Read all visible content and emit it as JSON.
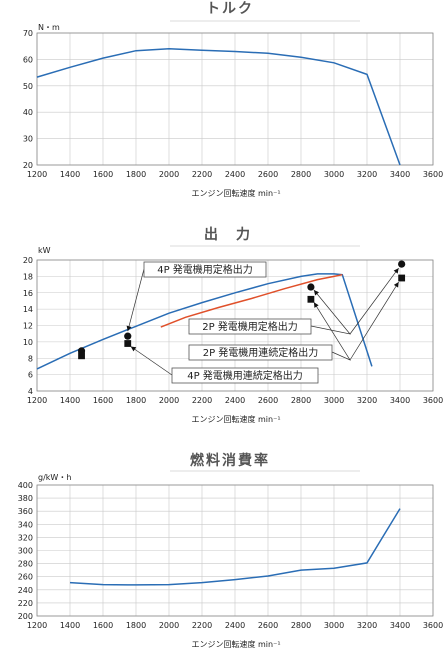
{
  "charts": [
    {
      "title": "トルク",
      "unit_label": "N・m",
      "xlabel": "エンジン回転速度 min⁻¹",
      "xlim": [
        1200,
        3600
      ],
      "ylim": [
        20,
        70
      ],
      "x_ticks": [
        1200,
        1400,
        1600,
        1800,
        2000,
        2200,
        2400,
        2600,
        2800,
        3000,
        3200,
        3400,
        3600
      ],
      "y_ticks": [
        20,
        30,
        40,
        50,
        60,
        70
      ]
    },
    {
      "title": "出　力",
      "unit_label": "kW",
      "xlabel": "エンジン回転速度 min⁻¹",
      "xlim": [
        1200,
        3600
      ],
      "ylim": [
        4,
        20
      ],
      "x_ticks": [
        1200,
        1400,
        1600,
        1800,
        2000,
        2200,
        2400,
        2600,
        2800,
        3000,
        3200,
        3400,
        3600
      ],
      "y_ticks": [
        4,
        6,
        8,
        10,
        12,
        14,
        16,
        18,
        20
      ],
      "callouts": [
        "4P 発電機用定格出力",
        "2P 発電機用定格出力",
        "2P 発電機用連続定格出力",
        "4P 発電機用連続定格出力"
      ]
    },
    {
      "title": "燃料消費率",
      "unit_label": "g/kW・h",
      "xlabel": "エンジン回転速度 min⁻¹",
      "xlim": [
        1200,
        3600
      ],
      "ylim": [
        200,
        400
      ],
      "x_ticks": [
        1200,
        1400,
        1600,
        1800,
        2000,
        2200,
        2400,
        2600,
        2800,
        3000,
        3200,
        3400,
        3600
      ],
      "y_ticks": [
        200,
        220,
        240,
        260,
        280,
        300,
        320,
        340,
        360,
        380,
        400
      ]
    }
  ],
  "chart_data": [
    {
      "type": "line",
      "title": "トルク",
      "ylabel": "N・m",
      "xlabel": "エンジン回転速度 min⁻¹",
      "xlim": [
        1200,
        3600
      ],
      "ylim": [
        20,
        70
      ],
      "series": [
        {
          "color": "#2a6db5",
          "x": [
            1200,
            1400,
            1600,
            1800,
            2000,
            2200,
            2400,
            2600,
            2800,
            3000,
            3200,
            3400
          ],
          "y": [
            53.3,
            57,
            60.5,
            63.3,
            64,
            63.5,
            63,
            62.3,
            60.8,
            58.7,
            54.3,
            20
          ]
        }
      ]
    },
    {
      "type": "line",
      "title": "出　力",
      "ylabel": "kW",
      "xlabel": "エンジン回転速度 min⁻¹",
      "xlim": [
        1200,
        3600
      ],
      "ylim": [
        4,
        20
      ],
      "series": [
        {
          "color": "#2a6db5",
          "x": [
            1200,
            1400,
            1600,
            1800,
            2000,
            2200,
            2400,
            2600,
            2800,
            2900,
            3000,
            3050,
            3230
          ],
          "y": [
            6.7,
            8.6,
            10.3,
            11.9,
            13.5,
            14.8,
            16,
            17.1,
            18,
            18.3,
            18.3,
            18.2,
            7
          ]
        },
        {
          "color": "#e0502a",
          "x": [
            1950,
            2100,
            2300,
            2500,
            2700,
            2900,
            3000,
            3050
          ],
          "y": [
            11.8,
            13,
            14.2,
            15.3,
            16.5,
            17.6,
            18,
            18.2
          ]
        }
      ],
      "markers": [
        {
          "shape": "circle",
          "x": [
            1470,
            1750,
            2860,
            3410
          ],
          "y": [
            8.9,
            10.7,
            16.7,
            19.5
          ]
        },
        {
          "shape": "square",
          "x": [
            1470,
            1750,
            2860,
            3410
          ],
          "y": [
            8.3,
            9.8,
            15.2,
            17.8
          ]
        }
      ],
      "annotations": [
        "4P 発電機用定格出力",
        "2P 発電機用定格出力",
        "2P 発電機用連続定格出力",
        "4P 発電機用連続定格出力"
      ]
    },
    {
      "type": "line",
      "title": "燃料消費率",
      "ylabel": "g/kW・h",
      "xlabel": "エンジン回転速度 min⁻¹",
      "xlim": [
        1200,
        3600
      ],
      "ylim": [
        200,
        400
      ],
      "series": [
        {
          "color": "#2a6db5",
          "x": [
            1400,
            1600,
            1800,
            2000,
            2200,
            2400,
            2600,
            2800,
            3000,
            3200,
            3400
          ],
          "y": [
            251,
            248,
            247.5,
            248,
            251,
            255.5,
            261,
            270,
            273,
            281,
            364
          ]
        }
      ]
    }
  ]
}
